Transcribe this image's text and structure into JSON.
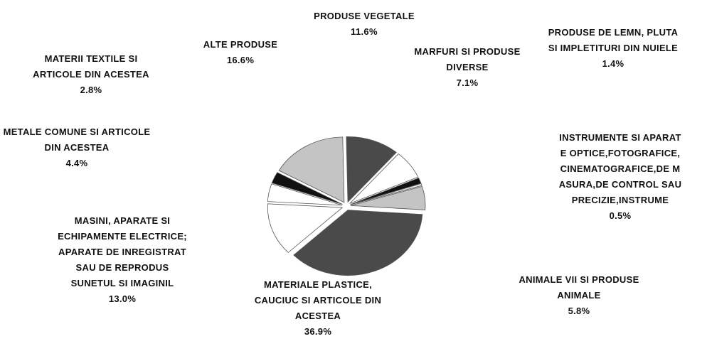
{
  "chart_data": {
    "type": "pie",
    "categories": [
      "PRODUSE VEGETALE",
      "MARFURI SI PRODUSE DIVERSE",
      "PRODUSE DE LEMN, PLUTA SI IMPLETITURI DIN NUIELE",
      "INSTRUMENTE SI APARATE OPTICE,FOTOGRAFICE,CINEMATOGRAFICE,DE MASURA,DE CONTROL SAU PRECIZIE,INSTRUME",
      "ANIMALE VII SI PRODUSE ANIMALE",
      "MATERIALE PLASTICE, CAUCIUC SI ARTICOLE DIN ACESTEA",
      "MASINI, APARATE SI ECHIPAMENTE ELECTRICE; APARATE DE INREGISTRAT SAU DE REPRODUS SUNETUL SI IMAGINIL",
      "METALE COMUNE SI ARTICOLE DIN ACESTEA",
      "MATERII TEXTILE SI ARTICOLE DIN ACESTEA",
      "ALTE PRODUSE"
    ],
    "values": [
      11.6,
      7.1,
      1.4,
      0.5,
      5.8,
      36.9,
      13.0,
      4.4,
      2.8,
      16.6
    ],
    "value_labels": [
      "11.6%",
      "7.1%",
      "1.4%",
      "0.5%",
      "5.8%",
      "36.9%",
      "13.0%",
      "4.4%",
      "2.8%",
      "16.6%"
    ],
    "colors": [
      "#4a4a4a",
      "#ffffff",
      "#111111",
      "#e8e8e8",
      "#c4c4c4",
      "#4a4a4a",
      "#ffffff",
      "#ffffff",
      "#111111",
      "#c4c4c4"
    ]
  }
}
